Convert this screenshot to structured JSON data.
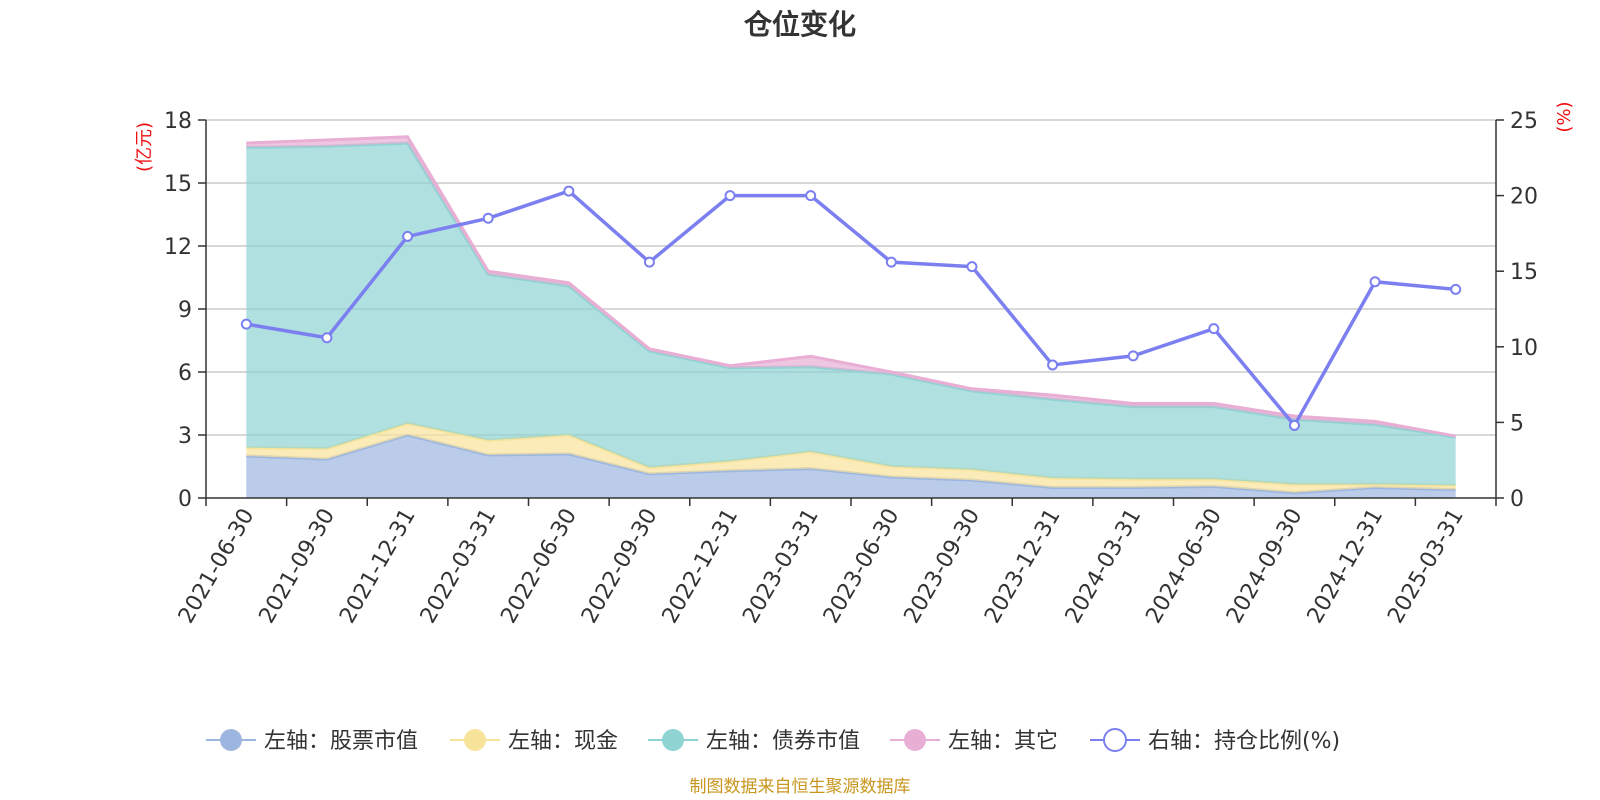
{
  "chart_data": {
    "type": "area",
    "title": "仓位变化",
    "left_axis_unit": "(亿元)",
    "right_axis_unit": "(%)",
    "categories": [
      "2021-06-30",
      "2021-09-30",
      "2021-12-31",
      "2022-03-31",
      "2022-06-30",
      "2022-09-30",
      "2022-12-31",
      "2023-03-31",
      "2023-06-30",
      "2023-09-30",
      "2023-12-31",
      "2024-03-31",
      "2024-06-30",
      "2024-09-30",
      "2024-12-31",
      "2025-03-31"
    ],
    "left_ylim": [
      0,
      18
    ],
    "left_ticks": [
      0,
      3,
      6,
      9,
      12,
      15,
      18
    ],
    "right_ylim": [
      0,
      25
    ],
    "right_ticks": [
      0,
      5,
      10,
      15,
      20,
      25
    ],
    "grid": true,
    "legend_position": "bottom",
    "stacked_series": [
      {
        "name": "左轴：股票市值",
        "color": "#9db6e0",
        "values": [
          2.0,
          1.85,
          3.0,
          2.05,
          2.1,
          1.15,
          1.3,
          1.4,
          1.0,
          0.85,
          0.5,
          0.5,
          0.55,
          0.25,
          0.5,
          0.4
        ]
      },
      {
        "name": "左轴：现金",
        "color": "#f8e39a",
        "values": [
          0.4,
          0.5,
          0.55,
          0.7,
          0.9,
          0.3,
          0.45,
          0.8,
          0.5,
          0.5,
          0.45,
          0.4,
          0.35,
          0.4,
          0.15,
          0.2
        ]
      },
      {
        "name": "左轴：债券市值",
        "color": "#8fd3d3",
        "values": [
          14.3,
          14.4,
          13.35,
          7.9,
          7.1,
          5.55,
          4.45,
          4.05,
          4.4,
          3.75,
          3.75,
          3.45,
          3.45,
          3.1,
          2.85,
          2.3
        ]
      },
      {
        "name": "左轴：其它",
        "color": "#e8aed4",
        "values": [
          0.2,
          0.3,
          0.3,
          0.15,
          0.15,
          0.1,
          0.1,
          0.5,
          0.1,
          0.1,
          0.2,
          0.15,
          0.15,
          0.15,
          0.15,
          0.05
        ]
      }
    ],
    "line_series": {
      "name": "右轴：持仓比例(%)",
      "color": "#7b7ff0",
      "values": [
        11.5,
        10.6,
        17.3,
        18.5,
        20.3,
        15.6,
        20.0,
        20.0,
        15.6,
        15.3,
        8.8,
        9.4,
        11.2,
        4.8,
        14.3,
        13.8
      ]
    }
  },
  "source_text": "制图数据来自恒生聚源数据库"
}
